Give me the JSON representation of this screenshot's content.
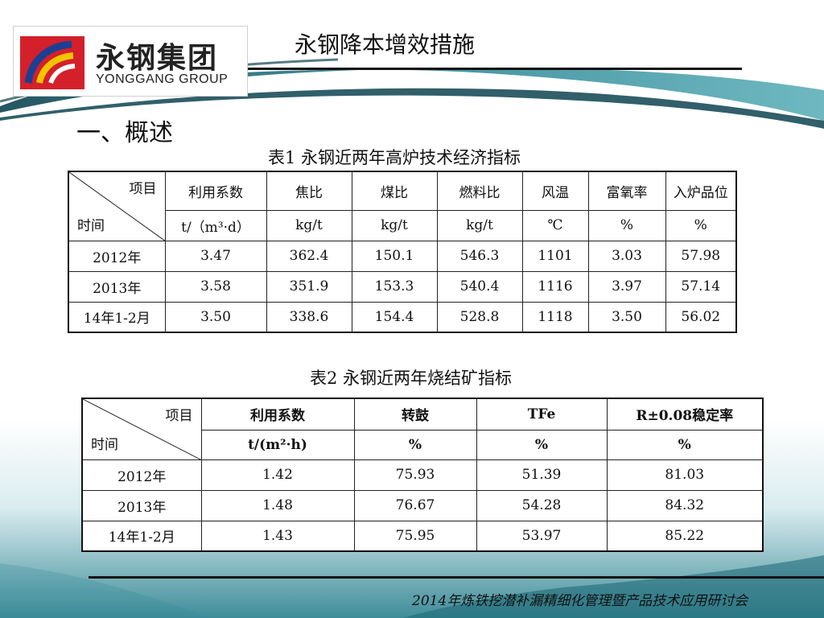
{
  "header": {
    "logo_cn": "永钢集团",
    "logo_en": "YONGGANG GROUP",
    "title": "永钢降本增效措施"
  },
  "section_heading": "一、概述",
  "table1": {
    "caption": "表1  永钢近两年高炉技术经济指标",
    "corner_item": "项目",
    "corner_time": "时间",
    "headers": [
      "利用系数",
      "焦比",
      "煤比",
      "燃料比",
      "风温",
      "富氧率",
      "入炉品位"
    ],
    "units": [
      "t/（m³·d）",
      "kg/t",
      "kg/t",
      "kg/t",
      "℃",
      "%",
      "%"
    ],
    "rows": [
      {
        "period": "2012年",
        "values": [
          "3.47",
          "362.4",
          "150.1",
          "546.3",
          "1101",
          "3.03",
          "57.98"
        ]
      },
      {
        "period": "2013年",
        "values": [
          "3.58",
          "351.9",
          "153.3",
          "540.4",
          "1116",
          "3.97",
          "57.14"
        ]
      },
      {
        "period": "14年1-2月",
        "values": [
          "3.50",
          "338.6",
          "154.4",
          "528.8",
          "1118",
          "3.50",
          "56.02"
        ]
      }
    ]
  },
  "table2": {
    "caption": "表2  永钢近两年烧结矿指标",
    "corner_item": "项目",
    "corner_time": "时间",
    "headers": [
      "利用系数",
      "转鼓",
      "TFe",
      "R±0.08稳定率"
    ],
    "units": [
      "t/(m²·h)",
      "%",
      "%",
      "%"
    ],
    "rows": [
      {
        "period": "2012年",
        "values": [
          "1.42",
          "75.93",
          "51.39",
          "81.03"
        ]
      },
      {
        "period": "2013年",
        "values": [
          "1.48",
          "76.67",
          "54.28",
          "84.32"
        ]
      },
      {
        "period": "14年1-2月",
        "values": [
          "1.43",
          "75.95",
          "53.97",
          "85.22"
        ]
      }
    ]
  },
  "footer": {
    "text": "2014年炼铁挖潜补漏精细化管理暨产品技术应用研讨会"
  },
  "colors": {
    "teal_dark": "#0f5565",
    "teal_mid": "#2f8896",
    "logo_red": "#d4202a",
    "logo_blue": "#1c3f94",
    "logo_yellow": "#f2c400"
  }
}
